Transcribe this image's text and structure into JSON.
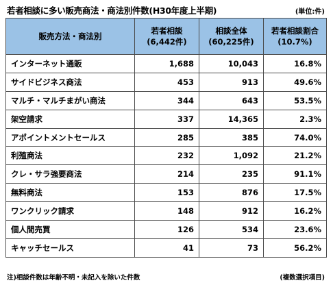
{
  "title": "若者相談に多い販売商法・商法別件数(H30年度上半期)",
  "unit": "(単位:件)",
  "header": {
    "category": "販売方法・商法別",
    "col1_line1": "若者相談",
    "col1_line2": "(6,442件)",
    "col2_line1": "相談全体",
    "col2_line2": "(60,225件)",
    "col3_line1": "若者相談割合",
    "col3_line2": "(10.7%)"
  },
  "rows": [
    {
      "label": "インターネット通販",
      "youth": "1,688",
      "total": "10,043",
      "ratio": "16.8%"
    },
    {
      "label": "サイドビジネス商法",
      "youth": "453",
      "total": "913",
      "ratio": "49.6%"
    },
    {
      "label": "マルチ・マルチまがい商法",
      "youth": "344",
      "total": "643",
      "ratio": "53.5%"
    },
    {
      "label": "架空請求",
      "youth": "337",
      "total": "14,365",
      "ratio": "2.3%"
    },
    {
      "label": "アポイントメントセールス",
      "youth": "285",
      "total": "385",
      "ratio": "74.0%"
    },
    {
      "label": "利殖商法",
      "youth": "232",
      "total": "1,092",
      "ratio": "21.2%"
    },
    {
      "label": "クレ・サラ強要商法",
      "youth": "214",
      "total": "235",
      "ratio": "91.1%"
    },
    {
      "label": "無料商法",
      "youth": "153",
      "total": "876",
      "ratio": "17.5%"
    },
    {
      "label": "ワンクリック請求",
      "youth": "148",
      "total": "912",
      "ratio": "16.2%"
    },
    {
      "label": "個人間売買",
      "youth": "126",
      "total": "534",
      "ratio": "23.6%"
    },
    {
      "label": "キャッチセールス",
      "youth": "41",
      "total": "73",
      "ratio": "56.2%"
    }
  ],
  "footnote": "注)相談件数は年齢不明・未記入を除いた件数",
  "footnote_right": "(複数選択項目)",
  "colors": {
    "header_bg": "#9bc2e6",
    "border": "#4a4a4a"
  }
}
